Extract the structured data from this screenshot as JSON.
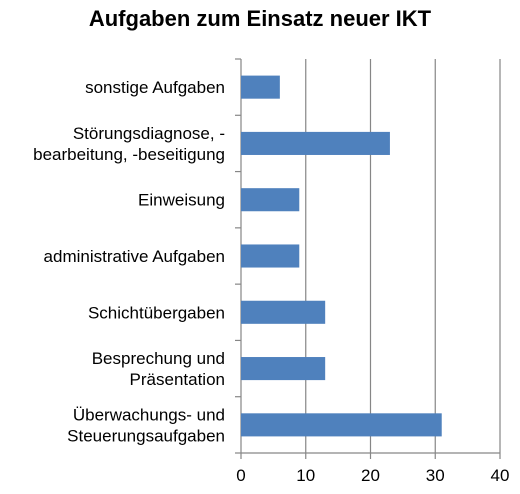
{
  "chart_data": {
    "type": "bar",
    "orientation": "horizontal",
    "title": "Aufgaben zum Einsatz neuer IKT",
    "categories": [
      [
        "sonstige Aufgaben"
      ],
      [
        "Störungsdiagnose, -",
        "bearbeitung, -beseitigung"
      ],
      [
        "Einweisung"
      ],
      [
        "administrative Aufgaben"
      ],
      [
        "Schichtübergaben"
      ],
      [
        "Besprechung und",
        "Präsentation"
      ],
      [
        "Überwachungs- und",
        "Steuerungsaufgaben"
      ]
    ],
    "values": [
      6,
      23,
      9,
      9,
      13,
      13,
      31
    ],
    "xlim": [
      0,
      40
    ],
    "xticks": [
      "0",
      "10",
      "20",
      "30",
      "40"
    ],
    "xlabel": "",
    "ylabel": "",
    "grid": "vertical",
    "bar_color": "#4f81bd",
    "grid_color": "#868686"
  }
}
